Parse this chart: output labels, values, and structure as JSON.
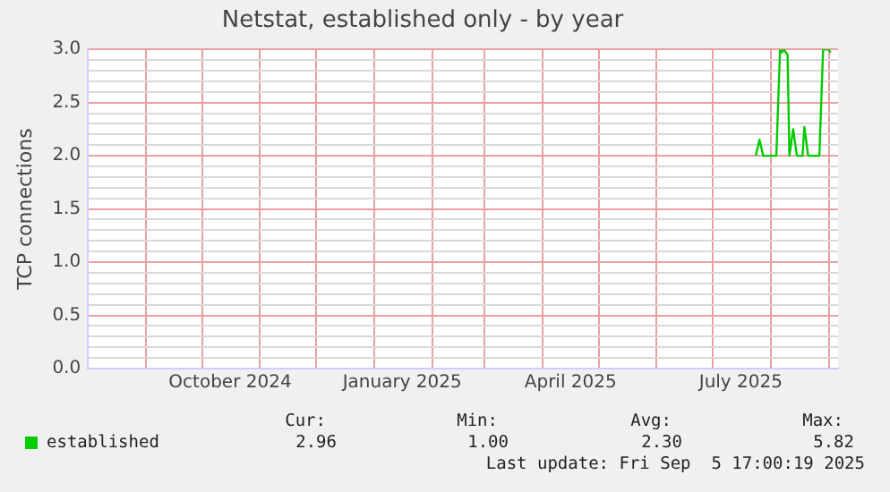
{
  "chart_data": {
    "type": "line",
    "title": "Netstat, established only - by year",
    "ylabel": "TCP connections",
    "xlim": [
      "2024-08-01",
      "2025-09-06"
    ],
    "xticks": [
      {
        "value": "2024-09-01",
        "label": null
      },
      {
        "value": "2024-10-01",
        "label": null
      },
      {
        "value": "2024-10-16",
        "label": "October 2024"
      },
      {
        "value": "2024-11-01",
        "label": null
      },
      {
        "value": "2024-12-01",
        "label": null
      },
      {
        "value": "2025-01-01",
        "label": null
      },
      {
        "value": "2025-01-16",
        "label": "January 2025"
      },
      {
        "value": "2025-02-01",
        "label": null
      },
      {
        "value": "2025-03-01",
        "label": null
      },
      {
        "value": "2025-04-01",
        "label": null
      },
      {
        "value": "2025-04-16",
        "label": "April 2025"
      },
      {
        "value": "2025-05-01",
        "label": null
      },
      {
        "value": "2025-06-01",
        "label": null
      },
      {
        "value": "2025-07-01",
        "label": null
      },
      {
        "value": "2025-07-16",
        "label": "July 2025"
      },
      {
        "value": "2025-08-01",
        "label": null
      },
      {
        "value": "2025-09-01",
        "label": null
      }
    ],
    "ylim": [
      0,
      3
    ],
    "yticks": [
      {
        "value": 0,
        "label": "0.0"
      },
      {
        "value": 0.1,
        "label": null
      },
      {
        "value": 0.2,
        "label": null
      },
      {
        "value": 0.3,
        "label": null
      },
      {
        "value": 0.4,
        "label": null
      },
      {
        "value": 0.5,
        "label": "0.5"
      },
      {
        "value": 0.6,
        "label": null
      },
      {
        "value": 0.7,
        "label": null
      },
      {
        "value": 0.8,
        "label": null
      },
      {
        "value": 0.9,
        "label": null
      },
      {
        "value": 1,
        "label": "1.0"
      },
      {
        "value": 1.1,
        "label": null
      },
      {
        "value": 1.2,
        "label": null
      },
      {
        "value": 1.3,
        "label": null
      },
      {
        "value": 1.4,
        "label": null
      },
      {
        "value": 1.5,
        "label": "1.5"
      },
      {
        "value": 1.6,
        "label": null
      },
      {
        "value": 1.7,
        "label": null
      },
      {
        "value": 1.8,
        "label": null
      },
      {
        "value": 1.9,
        "label": null
      },
      {
        "value": 2,
        "label": "2.0"
      },
      {
        "value": 2.1,
        "label": null
      },
      {
        "value": 2.2,
        "label": null
      },
      {
        "value": 2.3,
        "label": null
      },
      {
        "value": 2.4,
        "label": null
      },
      {
        "value": 2.5,
        "label": "2.5"
      },
      {
        "value": 2.6,
        "label": null
      },
      {
        "value": 2.7,
        "label": null
      },
      {
        "value": 2.8,
        "label": null
      },
      {
        "value": 2.9,
        "label": null
      },
      {
        "value": 3,
        "label": "3.0"
      }
    ],
    "grid": true,
    "legend": "bottom",
    "marker": "none",
    "line_style": "solid",
    "x": [
      "2025-07-24",
      "2025-07-26",
      "2025-07-28",
      "2025-08-04",
      "2025-08-06",
      "2025-08-07",
      "2025-08-08",
      "2025-08-10",
      "2025-08-11",
      "2025-08-13",
      "2025-08-15",
      "2025-08-18",
      "2025-08-19",
      "2025-08-21",
      "2025-08-27",
      "2025-08-29",
      "2025-09-01",
      "2025-09-02"
    ],
    "series": [
      {
        "name": "established",
        "color": "#00cc00",
        "values": [
          2.0,
          2.15,
          2.0,
          2.0,
          3.0,
          2.97,
          3.0,
          2.95,
          2.0,
          2.25,
          2.0,
          2.0,
          2.27,
          2.0,
          2.0,
          3.0,
          3.0,
          2.97
        ]
      }
    ],
    "annotations": [
      "Cur:",
      "2.96",
      "Min:",
      "1.00",
      "Avg:",
      "2.30",
      "Max:",
      "5.82",
      "Last update: Fri Sep  5 17:00:19 2025"
    ]
  }
}
